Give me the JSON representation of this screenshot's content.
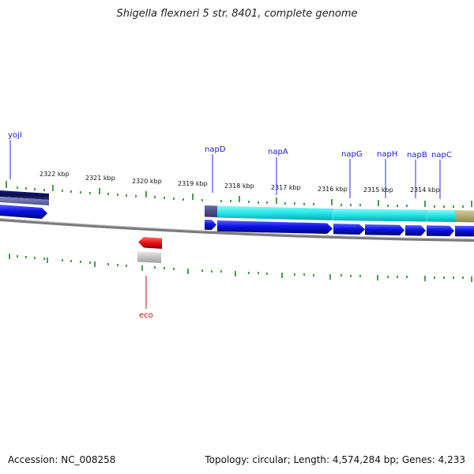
{
  "title": "Shigella flexneri 5 str. 8401, complete genome",
  "footer": {
    "accession": "Accession: NC_008258",
    "topology": "Topology: circular; Length: 4,574,284 bp; Genes: 4,233"
  },
  "colors": {
    "gene_forward": "#0a12e8",
    "gene_reverse": "#e01010",
    "cds_light": "#22e6e6",
    "tick": "#0e7a12",
    "label_line": "#2a2ae0",
    "eco_label": "#c01010",
    "backbone": "#888888"
  },
  "ticks": [
    {
      "label": "2322 kbp"
    },
    {
      "label": "2321 kbp"
    },
    {
      "label": "2320 kbp"
    },
    {
      "label": "2319 kbp"
    },
    {
      "label": "2318 kbp"
    },
    {
      "label": "2317 kbp"
    },
    {
      "label": "2316 kbp"
    },
    {
      "label": "2315 kbp"
    },
    {
      "label": "2314 kbp"
    }
  ],
  "genes": [
    {
      "name": "yojI"
    },
    {
      "name": "napD"
    },
    {
      "name": "napA"
    },
    {
      "name": "napG"
    },
    {
      "name": "napH"
    },
    {
      "name": "napB"
    },
    {
      "name": "napC"
    },
    {
      "name": "eco"
    }
  ]
}
